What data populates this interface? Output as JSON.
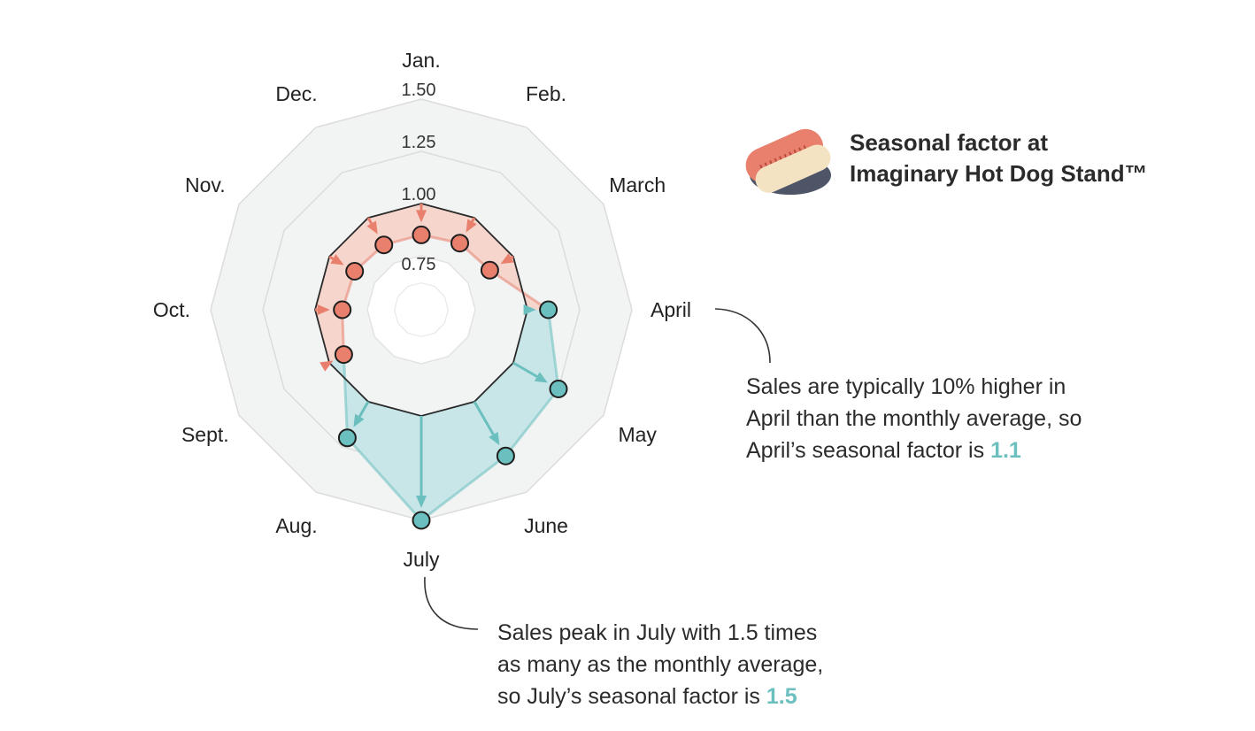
{
  "title_lines": [
    "Seasonal factor at",
    "Imaginary Hot Dog Stand™"
  ],
  "colors": {
    "below": "#e8806d",
    "below_fill": "#f5d5cc",
    "above": "#6cbfbf",
    "above_fill": "#c8e6e8",
    "grid_fill": "#f2f3f3",
    "grid_stroke": "#dcdcdc",
    "baseline": "#2a2a2a",
    "highlight": "#6cbfbf",
    "bun": "#f3e3c3",
    "sausage": "#e8806d",
    "plate": "#4e5566"
  },
  "chart_data": {
    "type": "radar",
    "title": "Seasonal factor at Imaginary Hot Dog Stand™",
    "categories": [
      "Jan.",
      "Feb.",
      "March",
      "April",
      "May",
      "June",
      "July",
      "Aug.",
      "Sept.",
      "Oct.",
      "Nov.",
      "Dec."
    ],
    "values": [
      0.85,
      0.86,
      0.87,
      1.1,
      1.25,
      1.3,
      1.5,
      1.2,
      0.92,
      0.87,
      0.86,
      0.85
    ],
    "baseline": 1.0,
    "rlim": [
      0.5,
      1.5
    ],
    "ticks": [
      0.75,
      1.0,
      1.25,
      1.5
    ],
    "tick_labels": [
      "0.75",
      "1.00",
      "1.25",
      "1.50"
    ]
  },
  "annotations": [
    {
      "month": "April",
      "lines": [
        "Sales are typically 10% higher in",
        "April than the monthly average, so",
        "April’s seasonal factor is "
      ],
      "highlight": "1.1"
    },
    {
      "month": "July",
      "lines": [
        "Sales peak in July with 1.5 times",
        "as many as the monthly average,",
        "so July’s seasonal factor is "
      ],
      "highlight": "1.5"
    }
  ]
}
